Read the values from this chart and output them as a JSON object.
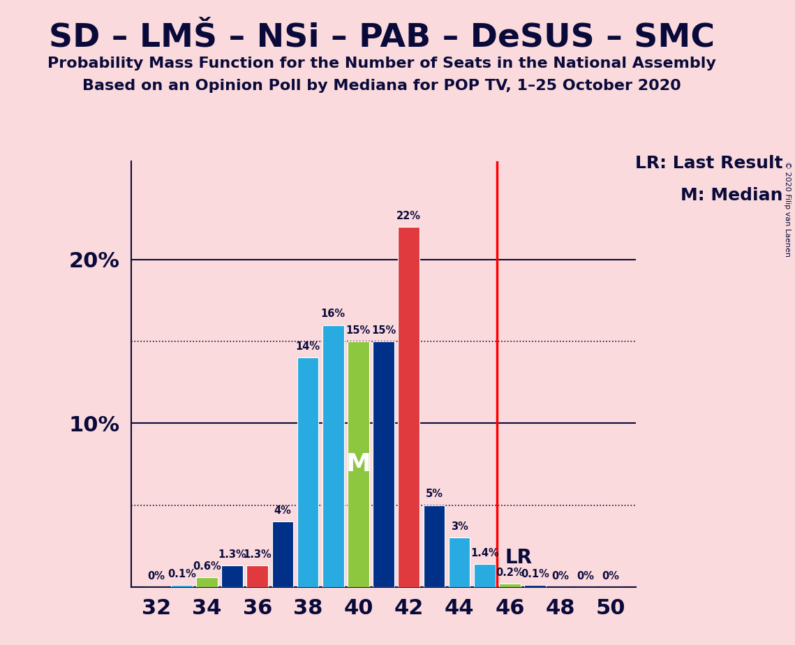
{
  "title": "SD – LMŠ – NSi – PAB – DeSUS – SMC",
  "subtitle1": "Probability Mass Function for the Number of Seats in the National Assembly",
  "subtitle2": "Based on an Opinion Poll by Mediana for POP TV, 1–25 October 2020",
  "copyright": "© 2020 Filip van Laenen",
  "background_color": "#fadadd",
  "seats": [
    32,
    33,
    34,
    35,
    36,
    37,
    38,
    39,
    40,
    41,
    42,
    43,
    44,
    45,
    46,
    47,
    48,
    49,
    50
  ],
  "probabilities": [
    0.0,
    0.1,
    0.6,
    1.3,
    1.3,
    4.0,
    14.0,
    16.0,
    15.0,
    15.0,
    22.0,
    5.0,
    3.0,
    1.4,
    0.2,
    0.1,
    0.0,
    0.0,
    0.0
  ],
  "bar_colors": [
    "#29abe2",
    "#29abe2",
    "#8dc63f",
    "#003087",
    "#e03a3e",
    "#003087",
    "#29abe2",
    "#29abe2",
    "#8dc63f",
    "#003087",
    "#e03a3e",
    "#003087",
    "#29abe2",
    "#29abe2",
    "#8dc63f",
    "#003087",
    "#e03a3e",
    "#003087",
    "#29abe2"
  ],
  "labels": [
    "0%",
    "0.1%",
    "0.6%",
    "1.3%",
    "1.3%",
    "4%",
    "14%",
    "16%",
    "15%",
    "15%",
    "22%",
    "5%",
    "3%",
    "1.4%",
    "0.2%",
    "0.1%",
    "0%",
    "0%",
    "0%"
  ],
  "lr_line": 45.5,
  "median_seat": 40,
  "major_yticks": [
    10,
    20
  ],
  "dotted_yticks": [
    5,
    15
  ],
  "ylim": [
    0,
    26
  ],
  "xlim": [
    31,
    51
  ],
  "lr_text": "LR",
  "legend_lr": "LR: Last Result",
  "legend_m": "M: Median",
  "title_color": "#0a0a3a",
  "text_color": "#0a0a3a"
}
